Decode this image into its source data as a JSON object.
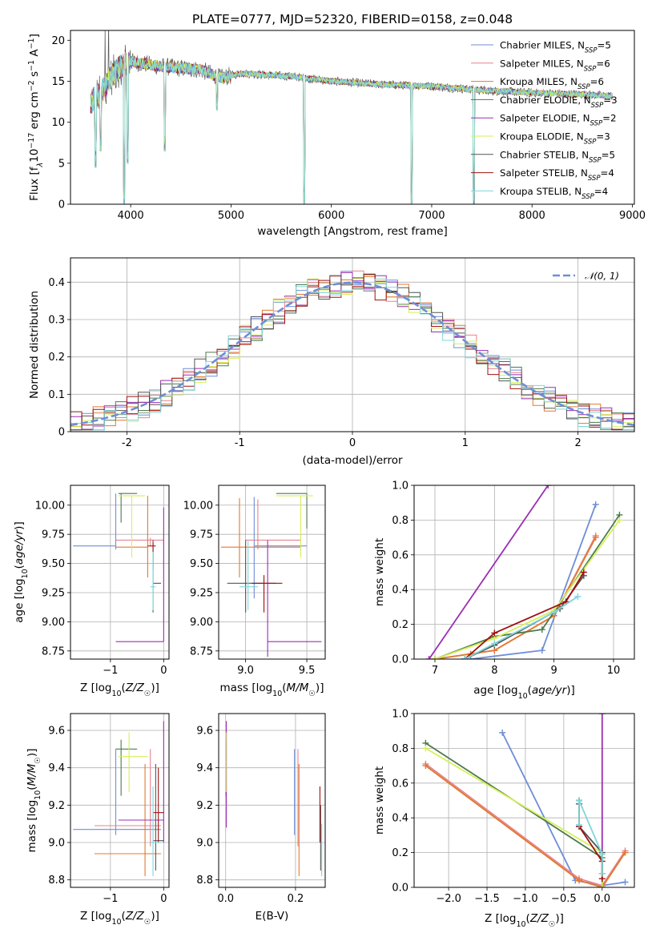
{
  "series_styles": [
    {
      "name": "Chabrier MILES, N",
      "sub": "SSP",
      "count": "=5",
      "color": "#6d8ed8"
    },
    {
      "name": "Salpeter MILES, N",
      "sub": "SSP",
      "count": "=6",
      "color": "#e8838c"
    },
    {
      "name": "Kroupa MILES, N",
      "sub": "SSP",
      "count": "=6",
      "color": "#e07a30"
    },
    {
      "name": "Chabrier ELODIE, N",
      "sub": "SSP",
      "count": "=3",
      "color": "#4c7a4c"
    },
    {
      "name": "Salpeter ELODIE, N",
      "sub": "SSP",
      "count": "=2",
      "color": "#9b2fb3"
    },
    {
      "name": "Kroupa ELODIE, N",
      "sub": "SSP",
      "count": "=3",
      "color": "#d6ef5a"
    },
    {
      "name": "Chabrier STELIB, N",
      "sub": "SSP",
      "count": "=5",
      "color": "#555555"
    },
    {
      "name": "Salpeter STELIB, N",
      "sub": "SSP",
      "count": "=4",
      "color": "#a01010"
    },
    {
      "name": "Kroupa STELIB, N",
      "sub": "SSP",
      "count": "=4",
      "color": "#7fd6d9"
    }
  ],
  "chart_data": [
    {
      "type": "line",
      "title": "PLATE=0777, MJD=52320, FIBERID=0158, z=0.048",
      "xlabel": "wavelength [Angstrom, rest frame]",
      "ylabel": "Flux [f_λ 10^{-17} erg cm^{-2} s^{-1} A^{-1}]",
      "ylabel_parts": {
        "a": "Flux [f",
        "b": "λ",
        "c": "10",
        "d": "−17",
        "e": " erg cm",
        "f": "−2",
        "g": " s",
        "h": "−1",
        "i": " A",
        "j": "−1",
        "k": "]"
      },
      "xlim": [
        3400,
        9020
      ],
      "ylim": [
        0,
        21.2
      ],
      "xticks": [
        4000,
        5000,
        6000,
        7000,
        8000,
        9000
      ],
      "yticks": [
        0,
        5,
        10,
        15,
        20
      ],
      "data_x_range": [
        3600,
        8800
      ],
      "spectrum_profile": [
        [
          3600,
          12.5
        ],
        [
          3700,
          13.5
        ],
        [
          3800,
          15.5
        ],
        [
          3950,
          17.5
        ],
        [
          4100,
          17.2
        ],
        [
          4300,
          16.8
        ],
        [
          4500,
          16.6
        ],
        [
          4700,
          16.4
        ],
        [
          4900,
          15.4
        ],
        [
          5100,
          16.0
        ],
        [
          5300,
          15.8
        ],
        [
          5600,
          15.6
        ],
        [
          6000,
          15.0
        ],
        [
          6500,
          14.6
        ],
        [
          7000,
          14.4
        ],
        [
          7500,
          13.9
        ],
        [
          8000,
          13.6
        ],
        [
          8500,
          13.4
        ],
        [
          8800,
          13.2
        ]
      ],
      "absorption_features": [
        [
          3650,
          4.5
        ],
        [
          3700,
          6.5
        ],
        [
          3935,
          0.0
        ],
        [
          3970,
          5.0
        ],
        [
          4340,
          6.5
        ],
        [
          4860,
          11.5
        ],
        [
          5730,
          0.0
        ],
        [
          6800,
          0.0
        ],
        [
          7420,
          0.0
        ]
      ],
      "grid": false,
      "legend_position": "top-right"
    },
    {
      "type": "bar",
      "xlabel": "(data-model)/error",
      "ylabel": "Normed distribution",
      "xlim": [
        -2.5,
        2.5
      ],
      "ylim": [
        0,
        0.465
      ],
      "xticks": [
        -2,
        -1,
        0,
        1,
        2
      ],
      "yticks": [
        0.0,
        0.1,
        0.2,
        0.3,
        0.4
      ],
      "bin_width": 0.1,
      "curve_label": "𝒩(0, 1)",
      "curve_color": "#6d8ed8",
      "grid": true,
      "legend_position": "top-right"
    },
    {
      "type": "scatter",
      "xlabel": "Z [log10(Z/Z☉)]",
      "ylabel": "age  [log10(age/yr)]",
      "xlabel_parts": [
        "Z [log",
        "10",
        "(",
        "Z/Z",
        "☉",
        ")]"
      ],
      "ylabel_parts": [
        "age  [log",
        "10",
        "(",
        "age/yr",
        ")]"
      ],
      "xlim": [
        -1.75,
        0.1
      ],
      "ylim": [
        8.68,
        10.17
      ],
      "xticks": [
        -1,
        0
      ],
      "yticks": [
        8.75,
        9.0,
        9.25,
        9.5,
        9.75,
        10.0
      ],
      "xticklabels": [
        "−1",
        "0"
      ],
      "yticklabels": [
        "8.75",
        "9.00",
        "9.25",
        "9.50",
        "9.75",
        "10.00"
      ],
      "points": [
        {
          "s": 0,
          "x": -0.9,
          "xe": [
            -1.7,
            -0.9
          ],
          "y": 9.65,
          "ye": [
            9.62,
            10.1
          ]
        },
        {
          "s": 1,
          "x": -0.25,
          "xe": [
            -0.9,
            0.0
          ],
          "y": 9.7,
          "ye": [
            9.65,
            9.72
          ]
        },
        {
          "s": 2,
          "x": -0.3,
          "xe": [
            -0.9,
            -0.3
          ],
          "y": 9.64,
          "ye": [
            9.38,
            10.08
          ]
        },
        {
          "s": 3,
          "x": -0.8,
          "xe": [
            -0.85,
            -0.5
          ],
          "y": 10.1,
          "ye": [
            9.85,
            10.1
          ]
        },
        {
          "s": 4,
          "x": 0.0,
          "xe": [
            -0.9,
            0.0
          ],
          "y": 8.83,
          "ye": [
            8.83,
            9.98
          ]
        },
        {
          "s": 5,
          "x": -0.6,
          "xe": [
            -0.85,
            -0.35
          ],
          "y": 10.08,
          "ye": [
            9.55,
            10.08
          ]
        },
        {
          "s": 6,
          "x": -0.2,
          "xe": [
            -0.2,
            -0.05
          ],
          "y": 9.33,
          "ye": [
            9.08,
            9.7
          ]
        },
        {
          "s": 7,
          "x": -0.2,
          "xe": [
            -0.3,
            -0.15
          ],
          "y": 9.65,
          "ye": [
            9.45,
            9.68
          ]
        },
        {
          "s": 8,
          "x": -0.2,
          "xe": [
            -0.25,
            -0.15
          ],
          "y": 9.3,
          "ye": [
            9.1,
            9.6
          ]
        }
      ]
    },
    {
      "type": "scatter",
      "xlabel": "mass [log10(M/M☉)]",
      "ylabel": "",
      "xlabel_parts": [
        "mass [log",
        "10",
        "(",
        "M/M",
        "☉",
        ")]"
      ],
      "xlim": [
        8.78,
        9.65
      ],
      "ylim": [
        8.68,
        10.17
      ],
      "xticks": [
        9.0,
        9.5
      ],
      "yticks": [
        8.75,
        9.0,
        9.25,
        9.5,
        9.75,
        10.0
      ],
      "xticklabels": [
        "9.0",
        "9.5"
      ],
      "yticklabels": [
        "8.75",
        "9.00",
        "9.25",
        "9.50",
        "9.75",
        "10.00"
      ],
      "points": [
        {
          "s": 0,
          "x": 9.07,
          "xe": [
            9.07,
            9.5
          ],
          "y": 9.65,
          "ye": [
            9.2,
            10.07
          ]
        },
        {
          "s": 1,
          "x": 9.1,
          "xe": [
            9.0,
            9.45
          ],
          "y": 9.7,
          "ye": [
            9.62,
            10.05
          ]
        },
        {
          "s": 2,
          "x": 8.95,
          "xe": [
            8.8,
            9.45
          ],
          "y": 9.64,
          "ye": [
            9.38,
            10.06
          ]
        },
        {
          "s": 3,
          "x": 9.5,
          "xe": [
            9.25,
            9.5
          ],
          "y": 10.1,
          "ye": [
            9.8,
            10.1
          ]
        },
        {
          "s": 4,
          "x": 9.18,
          "xe": [
            9.18,
            9.62
          ],
          "y": 8.83,
          "ye": [
            8.7,
            9.7
          ]
        },
        {
          "s": 5,
          "x": 9.45,
          "xe": [
            9.25,
            9.55
          ],
          "y": 10.08,
          "ye": [
            9.55,
            10.08
          ]
        },
        {
          "s": 6,
          "x": 9.0,
          "xe": [
            8.85,
            9.25
          ],
          "y": 9.33,
          "ye": [
            9.08,
            9.7
          ]
        },
        {
          "s": 7,
          "x": 9.15,
          "xe": [
            9.05,
            9.3
          ],
          "y": 9.33,
          "ye": [
            9.08,
            9.4
          ]
        },
        {
          "s": 8,
          "x": 9.02,
          "xe": [
            8.95,
            9.1
          ],
          "y": 9.3,
          "ye": [
            9.1,
            9.7
          ]
        }
      ]
    },
    {
      "type": "line",
      "xlabel": "age  [log10(age/yr)]",
      "ylabel": "mass weight",
      "xlabel_parts": [
        "age  [log",
        "10",
        "(",
        "age/yr",
        ")]"
      ],
      "xlim": [
        6.65,
        10.35
      ],
      "ylim": [
        0,
        1
      ],
      "xticks": [
        7,
        8,
        9,
        10
      ],
      "yticks": [
        0.0,
        0.2,
        0.4,
        0.6,
        0.8,
        1.0
      ],
      "xticklabels": [
        "7",
        "8",
        "9",
        "10"
      ],
      "yticklabels": [
        "0.0",
        "0.2",
        "0.4",
        "0.6",
        "0.8",
        "1.0"
      ],
      "series": [
        {
          "s": 0,
          "x": [
            7.6,
            8.8,
            9.7
          ],
          "y": [
            0.0,
            0.05,
            0.89
          ]
        },
        {
          "s": 1,
          "x": [
            7.0,
            7.6,
            8.0,
            9.0,
            9.7
          ],
          "y": [
            0.0,
            0.03,
            0.05,
            0.25,
            0.71
          ]
        },
        {
          "s": 2,
          "x": [
            7.0,
            7.6,
            8.0,
            9.0,
            9.7
          ],
          "y": [
            0.0,
            0.03,
            0.05,
            0.25,
            0.7
          ]
        },
        {
          "s": 3,
          "x": [
            7.0,
            8.0,
            8.8,
            10.1
          ],
          "y": [
            0.0,
            0.13,
            0.17,
            0.83
          ]
        },
        {
          "s": 4,
          "x": [
            6.9,
            8.9
          ],
          "y": [
            0.0,
            1.0
          ]
        },
        {
          "s": 5,
          "x": [
            7.0,
            8.0,
            9.0,
            10.1
          ],
          "y": [
            0.0,
            0.12,
            0.28,
            0.8
          ]
        },
        {
          "s": 6,
          "x": [
            7.5,
            8.0,
            9.1,
            9.5
          ],
          "y": [
            0.0,
            0.08,
            0.29,
            0.48
          ]
        },
        {
          "s": 7,
          "x": [
            7.5,
            8.0,
            9.2,
            9.5
          ],
          "y": [
            0.0,
            0.15,
            0.33,
            0.5
          ]
        },
        {
          "s": 8,
          "x": [
            7.5,
            8.0,
            9.0,
            9.4
          ],
          "y": [
            0.0,
            0.09,
            0.27,
            0.36
          ]
        }
      ],
      "grid": true
    },
    {
      "type": "scatter",
      "xlabel": "Z [log10(Z/Z☉)]",
      "ylabel": "mass [log10(M/M☉)]",
      "xlabel_parts": [
        "Z [log",
        "10",
        "(",
        "Z/Z",
        "☉",
        ")]"
      ],
      "ylabel_parts": [
        "mass [log",
        "10",
        "(",
        "M/M",
        "☉",
        ")]"
      ],
      "xlim": [
        -1.75,
        0.1
      ],
      "ylim": [
        8.76,
        9.69
      ],
      "xticks": [
        -1,
        0
      ],
      "yticks": [
        8.8,
        9.0,
        9.2,
        9.4,
        9.6
      ],
      "xticklabels": [
        "−1",
        "0"
      ],
      "yticklabels": [
        "8.8",
        "9.0",
        "9.2",
        "9.4",
        "9.6"
      ],
      "points": [
        {
          "s": 0,
          "x": -0.9,
          "xe": [
            -1.7,
            -0.05
          ],
          "y": 9.07,
          "ye": [
            9.04,
            9.5
          ]
        },
        {
          "s": 1,
          "x": -0.25,
          "xe": [
            -1.3,
            -0.05
          ],
          "y": 9.09,
          "ye": [
            8.98,
            9.5
          ]
        },
        {
          "s": 2,
          "x": -0.35,
          "xe": [
            -1.3,
            -0.05
          ],
          "y": 8.94,
          "ye": [
            8.82,
            9.42
          ]
        },
        {
          "s": 3,
          "x": -0.8,
          "xe": [
            -0.9,
            -0.5
          ],
          "y": 9.5,
          "ye": [
            9.25,
            9.55
          ]
        },
        {
          "s": 4,
          "x": 0.0,
          "xe": [
            -0.85,
            0.0
          ],
          "y": 9.12,
          "ye": [
            9.0,
            9.65
          ]
        },
        {
          "s": 5,
          "x": -0.65,
          "xe": [
            -0.85,
            -0.3
          ],
          "y": 9.46,
          "ye": [
            9.27,
            9.59
          ]
        },
        {
          "s": 6,
          "x": -0.15,
          "xe": [
            -0.2,
            0.0
          ],
          "y": 9.01,
          "ye": [
            8.85,
            9.42
          ]
        },
        {
          "s": 7,
          "x": -0.1,
          "xe": [
            -0.2,
            0.0
          ],
          "y": 9.16,
          "ye": [
            9.0,
            9.4
          ]
        },
        {
          "s": 8,
          "x": -0.2,
          "xe": [
            -0.25,
            -0.05
          ],
          "y": 9.0,
          "ye": [
            8.82,
            9.3
          ]
        }
      ]
    },
    {
      "type": "scatter",
      "xlabel": "E(B-V)",
      "ylabel": "",
      "xlim": [
        -0.02,
        0.285
      ],
      "ylim": [
        8.76,
        9.69
      ],
      "xticks": [
        0.0,
        0.2
      ],
      "yticks": [
        8.8,
        9.0,
        9.2,
        9.4,
        9.6
      ],
      "xticklabels": [
        "0.0",
        "0.2"
      ],
      "yticklabels": [
        "8.8",
        "9.0",
        "9.2",
        "9.4",
        "9.6"
      ],
      "points": [
        {
          "s": 0,
          "x": 0.197,
          "ye": [
            9.04,
            9.5
          ]
        },
        {
          "s": 1,
          "x": 0.207,
          "ye": [
            8.98,
            9.5
          ]
        },
        {
          "s": 2,
          "x": 0.21,
          "ye": [
            8.82,
            9.42
          ]
        },
        {
          "s": 3,
          "x": 0.001,
          "ye": [
            9.25,
            9.55
          ]
        },
        {
          "s": 4,
          "x": 0.002,
          "ye": [
            9.08,
            9.65
          ]
        },
        {
          "s": 5,
          "x": 0.001,
          "ye": [
            9.27,
            9.59
          ]
        },
        {
          "s": 6,
          "x": 0.272,
          "ye": [
            8.85,
            9.2
          ]
        },
        {
          "s": 7,
          "x": 0.27,
          "ye": [
            9.0,
            9.3
          ]
        },
        {
          "s": 8,
          "x": 0.275,
          "ye": [
            8.82,
            9.1
          ]
        }
      ]
    },
    {
      "type": "line",
      "xlabel": "Z [log10(Z/Z☉)]",
      "ylabel": "mass weight",
      "xlabel_parts": [
        "Z [log",
        "10",
        "(",
        "Z/Z",
        "☉",
        ")]"
      ],
      "xlim": [
        -2.45,
        0.42
      ],
      "ylim": [
        0,
        1
      ],
      "xticks": [
        -2.0,
        -1.5,
        -1.0,
        -0.5,
        0.0
      ],
      "xticklabels": [
        "−2.0",
        "−1.5",
        "−1.0",
        "−0.5",
        "0.0"
      ],
      "yticks": [
        0.0,
        0.2,
        0.4,
        0.6,
        0.8,
        1.0
      ],
      "yticklabels": [
        "0.0",
        "0.2",
        "0.4",
        "0.6",
        "0.8",
        "1.0"
      ],
      "series": [
        {
          "s": 0,
          "x": [
            -1.3,
            -0.35,
            0.0,
            0.3
          ],
          "y": [
            0.89,
            0.04,
            0.01,
            0.03
          ]
        },
        {
          "s": 1,
          "x": [
            -2.3,
            -0.3,
            0.0,
            0.3
          ],
          "y": [
            0.71,
            0.05,
            0.01,
            0.21
          ]
        },
        {
          "s": 2,
          "x": [
            -2.3,
            -0.3,
            0.0,
            0.3
          ],
          "y": [
            0.7,
            0.04,
            0.0,
            0.2
          ]
        },
        {
          "s": 3,
          "x": [
            -2.3,
            0.0,
            0.0
          ],
          "y": [
            0.83,
            0.17,
            0.0
          ]
        },
        {
          "s": 4,
          "x": [
            0.0,
            0.0
          ],
          "y": [
            1.0,
            0.0
          ]
        },
        {
          "s": 5,
          "x": [
            -2.3,
            0.0,
            0.0
          ],
          "y": [
            0.8,
            0.2,
            0.0
          ]
        },
        {
          "s": 6,
          "x": [
            -0.3,
            -0.3,
            0.0,
            0.0
          ],
          "y": [
            0.48,
            0.35,
            0.2,
            0.08
          ]
        },
        {
          "s": 7,
          "x": [
            -0.3,
            -0.3,
            0.0,
            0.0
          ],
          "y": [
            0.5,
            0.35,
            0.15,
            0.05
          ]
        },
        {
          "s": 8,
          "x": [
            -0.3,
            -0.3,
            0.0,
            0.0
          ],
          "y": [
            0.36,
            0.5,
            0.19,
            0.08
          ]
        }
      ],
      "grid": true
    }
  ]
}
